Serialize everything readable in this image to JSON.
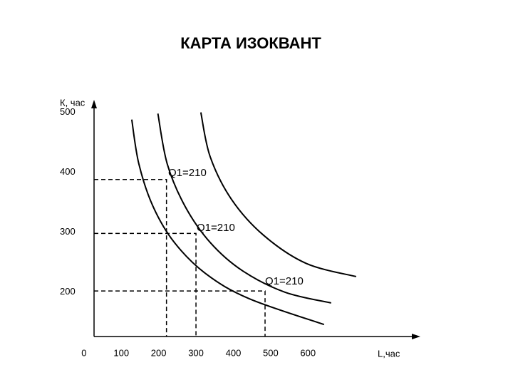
{
  "chart_data": {
    "type": "line",
    "title": "КАРТА ИЗОКВАНТ",
    "y_label": "К, час",
    "x_label": "L,час",
    "xlim": [
      27,
      880
    ],
    "ylim": [
      126,
      540
    ],
    "xticks": [
      0,
      100,
      200,
      300,
      400,
      500,
      600
    ],
    "yticks": [
      200,
      300,
      400,
      500
    ],
    "series": [
      {
        "name": "Q1=210",
        "color": "#000000",
        "x": [
          128,
          147,
          185,
          242,
          328,
          443,
          643
        ],
        "values": [
          488,
          414,
          343,
          283,
          230,
          189,
          146
        ]
      },
      {
        "name": "Q1=210",
        "color": "#000000",
        "x": [
          198,
          223,
          271,
          338,
          424,
          538,
          662
        ],
        "values": [
          498,
          414,
          343,
          283,
          236,
          200,
          182
        ]
      },
      {
        "name": "Q1=210",
        "color": "#000000",
        "x": [
          313,
          338,
          395,
          481,
          595,
          729
        ],
        "values": [
          500,
          426,
          355,
          295,
          248,
          226
        ]
      }
    ],
    "reference_points": {
      "x": [
        221,
        300,
        485
      ],
      "y": [
        388,
        298,
        202
      ]
    }
  }
}
